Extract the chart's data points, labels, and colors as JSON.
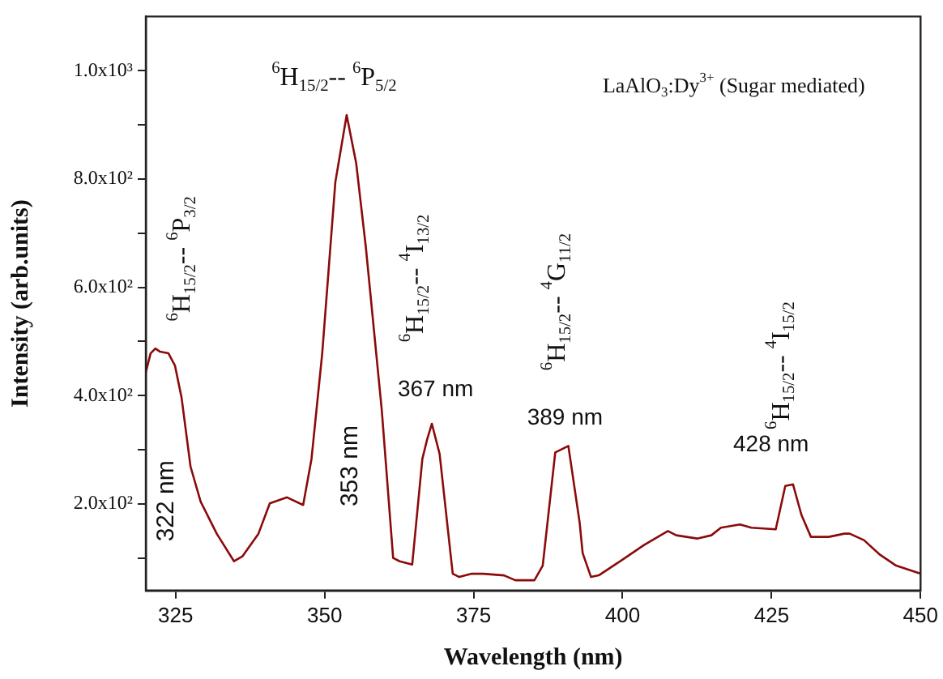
{
  "chart_data": {
    "type": "line",
    "xlabel": "Wavelength (nm)",
    "ylabel": "Intensity (arb.units)",
    "color": "#8b0a0a",
    "x": [
      320,
      320.8,
      321.6,
      322.4,
      323.8,
      324.9,
      326,
      327.5,
      329.2,
      331.9,
      334.8,
      336.2,
      338.9,
      340.8,
      343.7,
      346.4,
      347.8,
      349.6,
      351.8,
      353.7,
      355.3,
      356.9,
      359.6,
      361.5,
      362.6,
      364.7,
      366.4,
      367.2,
      368,
      369.3,
      371.5,
      372.6,
      374.7,
      376.6,
      380.1,
      382,
      385.2,
      386.6,
      388.7,
      390.9,
      392.8,
      393.3,
      394.7,
      396,
      400,
      403.6,
      407.6,
      409,
      412.5,
      414.9,
      416.5,
      419.7,
      421.6,
      425.7,
      427.3,
      428.6,
      430,
      431.6,
      434.6,
      437.2,
      438.1,
      440.5,
      443.2,
      445.9,
      450
    ],
    "values": [
      443,
      478,
      487,
      481,
      478,
      455,
      396,
      269,
      204,
      145,
      94,
      103,
      145,
      201,
      212,
      198,
      283,
      478,
      794,
      918,
      829,
      676,
      372,
      100,
      94,
      88,
      283,
      319,
      348,
      292,
      71,
      65,
      71,
      71,
      68,
      59,
      59,
      86,
      295,
      307,
      165,
      109,
      65,
      68,
      97,
      124,
      150,
      142,
      136,
      142,
      156,
      162,
      156,
      153,
      233,
      236,
      180,
      139,
      139,
      145,
      145,
      133,
      106,
      86,
      71
    ],
    "xlim": [
      320,
      450
    ],
    "xticks": [
      325,
      350,
      375,
      400,
      425,
      450
    ],
    "ylim": [
      40,
      1100
    ],
    "yticks": [
      {
        "value": 100,
        "label": null
      },
      {
        "value": 200,
        "label": "2.0x10²"
      },
      {
        "value": 300,
        "label": null
      },
      {
        "value": 400,
        "label": "4.0x10²"
      },
      {
        "value": 500,
        "label": null
      },
      {
        "value": 600,
        "label": "6.0x10²"
      },
      {
        "value": 700,
        "label": null
      },
      {
        "value": 800,
        "label": "8.0x10²"
      },
      {
        "value": 900,
        "label": null
      },
      {
        "value": 1000,
        "label": "1.0x10³"
      }
    ],
    "grid": false,
    "legend": false,
    "marker": "none",
    "line_style": "solid",
    "annotations": [
      "$^{6}$H$_{15/2}$-- $^{6}$P$_{5/2}$",
      "$^{6}$H$_{15/2}$-- $^{6}$P$_{3/2}$",
      "322 nm",
      "353 nm",
      "$^{6}$H$_{15/2}$-- $^{4}$I$_{13/2}$",
      "367 nm",
      "$^{6}$H$_{15/2}$-- $^{4}$G$_{11/2}$",
      "389 nm",
      "$^{6}$H$_{15/2}$-- $^{4}$I$_{15/2}$",
      "428 nm",
      "LaAlO$_{3}$:Dy$^{3+}$ (Sugar mediated)"
    ]
  }
}
